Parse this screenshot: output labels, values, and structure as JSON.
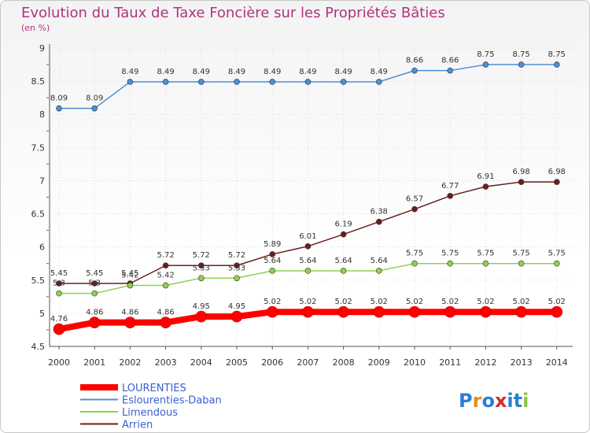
{
  "chart_data": {
    "type": "line",
    "title": "Evolution du Taux de Taxe Foncière sur les Propriétés Bâties",
    "subtitle": "(en %)",
    "x": [
      "2000",
      "2001",
      "2002",
      "2003",
      "2004",
      "2005",
      "2006",
      "2007",
      "2008",
      "2009",
      "2010",
      "2011",
      "2012",
      "2013",
      "2014"
    ],
    "ylim": [
      4.5,
      9
    ],
    "yticks": [
      "4.5",
      "5",
      "5.5",
      "6",
      "6.5",
      "7",
      "7.5",
      "8",
      "8.5",
      "9"
    ],
    "grid": true,
    "legend_position": "bottom-left",
    "series": [
      {
        "name": "LOURENTIES",
        "color": "#ff0000",
        "values": [
          4.76,
          4.86,
          4.86,
          4.86,
          4.95,
          4.95,
          5.02,
          5.02,
          5.02,
          5.02,
          5.02,
          5.02,
          5.02,
          5.02,
          5.02
        ],
        "labels": [
          "4.76",
          "4.86",
          "4.86",
          "4.86",
          "4.95",
          "4.95",
          "5.02",
          "5.02",
          "5.02",
          "5.02",
          "5.02",
          "5.02",
          "5.02",
          "5.02",
          "5.02"
        ]
      },
      {
        "name": "Eslourenties-Daban",
        "color": "#4a90d9",
        "values": [
          8.09,
          8.09,
          8.49,
          8.49,
          8.49,
          8.49,
          8.49,
          8.49,
          8.49,
          8.49,
          8.66,
          8.66,
          8.75,
          8.75,
          8.75
        ],
        "labels": [
          "8.09",
          "8.09",
          "8.49",
          "8.49",
          "8.49",
          "8.49",
          "8.49",
          "8.49",
          "8.49",
          "8.49",
          "8.66",
          "8.66",
          "8.75",
          "8.75",
          "8.75"
        ]
      },
      {
        "name": "Limendous",
        "color": "#8fd14f",
        "values": [
          5.3,
          5.3,
          5.42,
          5.42,
          5.53,
          5.53,
          5.64,
          5.64,
          5.64,
          5.64,
          5.75,
          5.75,
          5.75,
          5.75,
          5.75
        ],
        "labels": [
          "5.3",
          "5.3",
          "5.42",
          "5.42",
          "5.53",
          "5.53",
          "5.64",
          "5.64",
          "5.64",
          "5.64",
          "5.75",
          "5.75",
          "5.75",
          "5.75",
          "5.75"
        ]
      },
      {
        "name": "Arrien",
        "color": "#6b1e1e",
        "values": [
          5.45,
          5.45,
          5.45,
          5.72,
          5.72,
          5.72,
          5.89,
          6.01,
          6.19,
          6.38,
          6.57,
          6.77,
          6.91,
          6.98,
          6.98
        ],
        "labels": [
          "5.45",
          "5.45",
          "5.45",
          "5.72",
          "5.72",
          "5.72",
          "5.89",
          "6.01",
          "6.19",
          "6.38",
          "6.57",
          "6.77",
          "6.91",
          "6.98",
          "6.98"
        ]
      }
    ]
  },
  "logo": {
    "text": "Proxiti"
  }
}
